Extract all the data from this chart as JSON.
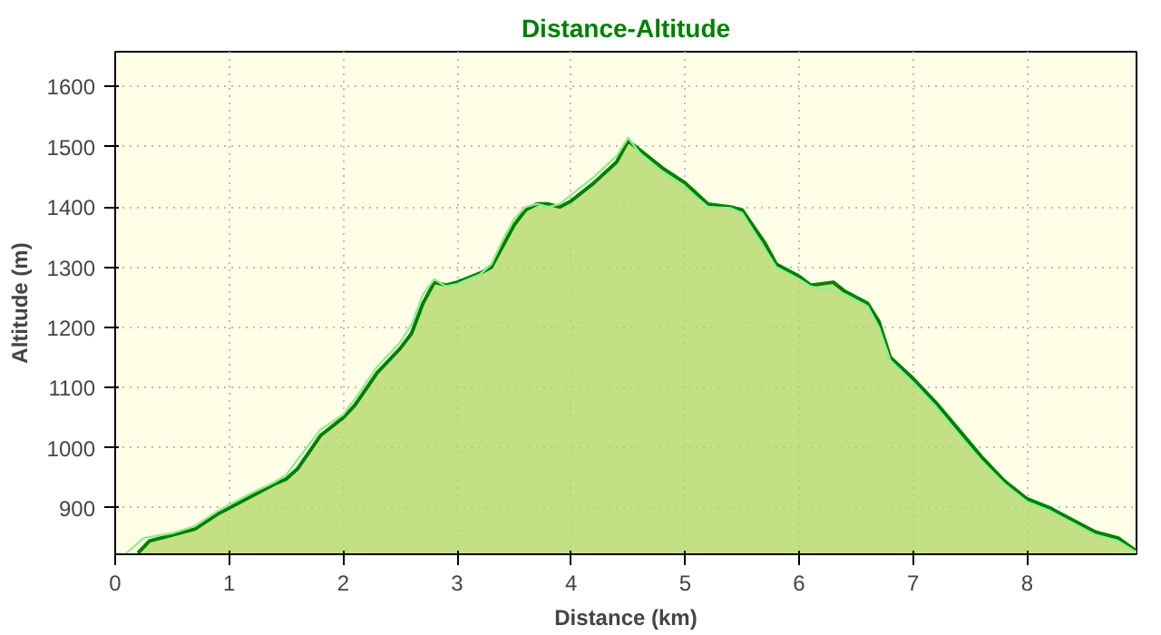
{
  "chart_data": {
    "type": "area",
    "title": "Distance-Altitude",
    "xlabel": "Distance (km)",
    "ylabel": "Altitude (m)",
    "xlim": [
      0,
      8.96
    ],
    "ylim": [
      823,
      1658
    ],
    "xticks": [
      0,
      1,
      2,
      3,
      4,
      5,
      6,
      7,
      8
    ],
    "yticks": [
      900,
      1000,
      1100,
      1200,
      1300,
      1400,
      1500,
      1600
    ],
    "grid": true,
    "series": [
      {
        "color": "#008000",
        "x": [
          0.2,
          0.3,
          0.5,
          0.7,
          0.9,
          1.0,
          1.2,
          1.4,
          1.5,
          1.6,
          1.8,
          2.0,
          2.1,
          2.3,
          2.5,
          2.6,
          2.7,
          2.8,
          2.9,
          3.0,
          3.2,
          3.3,
          3.4,
          3.5,
          3.6,
          3.7,
          3.8,
          3.9,
          4.0,
          4.2,
          4.4,
          4.5,
          4.6,
          4.8,
          5.0,
          5.2,
          5.4,
          5.5,
          5.7,
          5.8,
          6.0,
          6.1,
          6.3,
          6.4,
          6.6,
          6.7,
          6.8,
          7.0,
          7.2,
          7.4,
          7.6,
          7.8,
          8.0,
          8.2,
          8.4,
          8.6,
          8.8,
          8.96
        ],
        "values": [
          825,
          845,
          855,
          865,
          890,
          900,
          920,
          940,
          948,
          965,
          1020,
          1050,
          1070,
          1125,
          1165,
          1190,
          1240,
          1275,
          1270,
          1275,
          1290,
          1300,
          1335,
          1370,
          1395,
          1405,
          1405,
          1400,
          1410,
          1440,
          1475,
          1510,
          1495,
          1465,
          1440,
          1405,
          1400,
          1395,
          1340,
          1305,
          1285,
          1270,
          1275,
          1260,
          1240,
          1210,
          1150,
          1115,
          1075,
          1030,
          985,
          945,
          915,
          900,
          880,
          860,
          850,
          828
        ]
      },
      {
        "type": "line",
        "color": "#90ee90",
        "x": [
          0.1,
          0.25,
          0.5,
          0.7,
          0.9,
          1.0,
          1.2,
          1.4,
          1.5,
          1.6,
          1.8,
          2.0,
          2.1,
          2.3,
          2.5,
          2.6,
          2.7,
          2.8,
          2.9,
          3.0,
          3.2,
          3.3,
          3.4,
          3.5,
          3.6,
          3.7,
          3.8,
          3.9,
          4.0,
          4.2,
          4.4,
          4.5,
          4.6,
          4.8,
          5.0,
          5.2,
          5.4,
          5.5,
          5.7,
          5.8,
          6.0,
          6.1,
          6.3,
          6.4,
          6.6,
          6.7,
          6.8,
          7.0,
          7.2,
          7.4,
          7.6,
          7.8,
          8.0,
          8.2,
          8.4,
          8.6,
          8.8,
          8.96
        ],
        "values": [
          825,
          850,
          858,
          870,
          895,
          905,
          925,
          943,
          955,
          980,
          1030,
          1055,
          1080,
          1135,
          1175,
          1205,
          1255,
          1280,
          1268,
          1272,
          1288,
          1305,
          1345,
          1380,
          1400,
          1405,
          1400,
          1405,
          1420,
          1450,
          1485,
          1515,
          1490,
          1458,
          1432,
          1400,
          1398,
          1390,
          1330,
          1300,
          1280,
          1268,
          1260,
          1255,
          1235,
          1200,
          1145,
          1108,
          1068,
          1022,
          978,
          940,
          910,
          895,
          875,
          855,
          845,
          826
        ]
      }
    ]
  }
}
